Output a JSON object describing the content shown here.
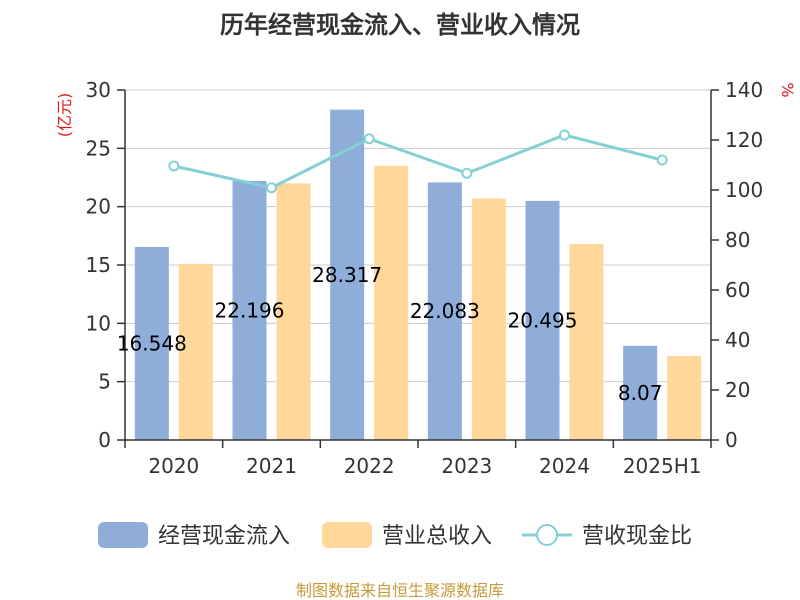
{
  "chart_data": {
    "type": "bar",
    "title": "历年经营现金流入、营业收入情况",
    "categories": [
      "2020",
      "2021",
      "2022",
      "2023",
      "2024",
      "2025H1"
    ],
    "y_left": {
      "unit": "(亿元)",
      "ylim": [
        0,
        30
      ],
      "ticks": [
        0,
        5,
        10,
        15,
        20,
        25,
        30
      ]
    },
    "y_right": {
      "unit": "%",
      "ylim": [
        0,
        140
      ],
      "ticks": [
        0,
        20,
        40,
        60,
        80,
        100,
        120,
        140
      ]
    },
    "series": [
      {
        "name": "经营现金流入",
        "kind": "bar",
        "axis": "left",
        "color": "#8eadd9",
        "values": [
          16.548,
          22.196,
          28.317,
          22.083,
          20.495,
          8.07
        ],
        "labels": [
          "16.548",
          "22.196",
          "28.317",
          "22.083",
          "20.495",
          "8.07"
        ]
      },
      {
        "name": "营业总收入",
        "kind": "bar",
        "axis": "left",
        "color": "#ffd899",
        "values": [
          15.1,
          22.0,
          23.5,
          20.7,
          16.8,
          7.2
        ]
      },
      {
        "name": "营收现金比",
        "kind": "line",
        "axis": "right",
        "color": "#84d0d4",
        "values": [
          109.6,
          100.9,
          120.5,
          106.7,
          122.0,
          112.0
        ]
      }
    ],
    "grid": true,
    "legend_position": "bottom"
  },
  "source_text": "制图数据来自恒生聚源数据库"
}
